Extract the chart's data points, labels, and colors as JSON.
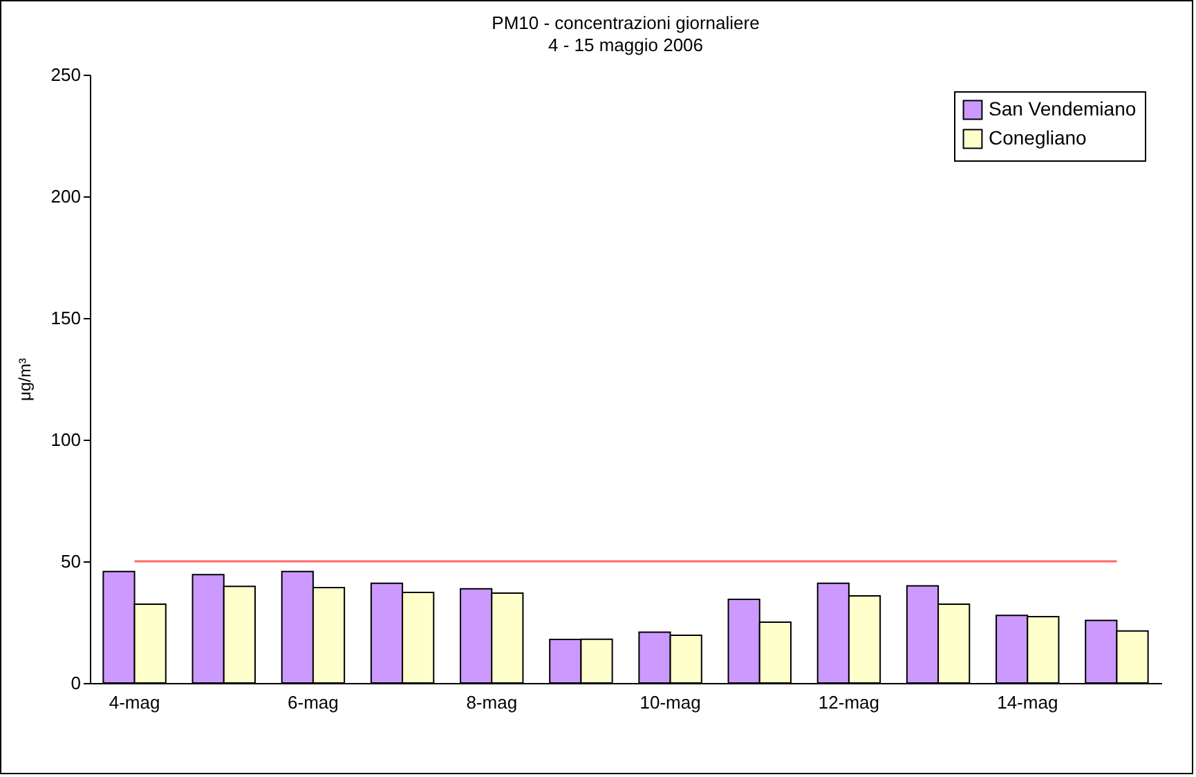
{
  "chart_data": {
    "type": "bar",
    "title": "PM10 - concentrazioni giornaliere",
    "subtitle": "4 - 15 maggio 2006",
    "ylabel": "μg/m³",
    "categories": [
      "4-mag",
      null,
      "6-mag",
      null,
      "8-mag",
      null,
      "10-mag",
      null,
      "12-mag",
      null,
      "14-mag",
      null
    ],
    "series": [
      {
        "name": "San Vendemiano",
        "color": "#cc99ff",
        "values": [
          45.8,
          44.5,
          45.8,
          41.0,
          38.7,
          17.9,
          20.9,
          34.4,
          41.0,
          39.9,
          27.8,
          25.7
        ]
      },
      {
        "name": "Conegliano",
        "color": "#ffffcc",
        "values": [
          32.4,
          39.7,
          39.2,
          37.2,
          36.9,
          18.0,
          19.6,
          25.0,
          35.8,
          32.4,
          27.3,
          21.4
        ]
      },
      {
        "type": "line",
        "color": "#ff6666",
        "values": [
          50,
          50,
          50,
          50,
          50,
          50,
          50,
          50,
          50,
          50,
          50,
          50
        ]
      }
    ],
    "ylim": [
      0,
      250
    ],
    "yticks": [
      0,
      50,
      100,
      150,
      200,
      250
    ],
    "grid": false,
    "legend": "top right"
  }
}
